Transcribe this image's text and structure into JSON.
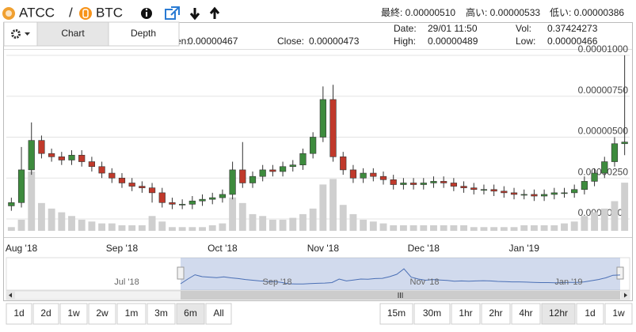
{
  "header": {
    "base": "ATCC",
    "separator": "/",
    "quote": "BTC",
    "stats": [
      "最終: 0.00000510",
      "高い: 0.00000533",
      "低い: 0.00000386"
    ]
  },
  "tabs": [
    "Chart",
    "Depth"
  ],
  "info": {
    "open_label": "Open:",
    "open": "0.00000467",
    "close_label": "Close:",
    "close": "0.00000473",
    "date_label": "Date:",
    "date": "29/01 11:50",
    "vol_label": "Vol:",
    "vol": "0.37424273",
    "high_label": "High:",
    "high": "0.00000489",
    "low_label": "Low:",
    "low": "0.00000466"
  },
  "chart_data": {
    "type": "candlestick",
    "categories": [
      null,
      "Aug '18",
      null,
      null,
      null,
      null,
      null,
      null,
      null,
      null,
      null,
      "Sep '18",
      null,
      null,
      null,
      null,
      null,
      null,
      null,
      null,
      null,
      "Oct '18",
      null,
      null,
      null,
      null,
      null,
      null,
      null,
      null,
      null,
      "Nov '18",
      null,
      null,
      null,
      null,
      null,
      null,
      null,
      null,
      null,
      "Dec '18",
      null,
      null,
      null,
      null,
      null,
      null,
      null,
      null,
      null,
      "Jan '19",
      null,
      null,
      null,
      null,
      null,
      null,
      null,
      null,
      null,
      null
    ],
    "open": [
      8e-07,
      1e-06,
      3e-06,
      4.8e-06,
      4e-06,
      3.8e-06,
      3.6e-06,
      3.9e-06,
      3.5e-06,
      3.2e-06,
      2.8e-06,
      2.5e-06,
      2.2e-06,
      2e-06,
      1.9e-06,
      1.6e-06,
      1e-06,
      9e-07,
      9e-07,
      1.1e-06,
      1.2e-06,
      1.3e-06,
      1.5e-06,
      3e-06,
      2.2e-06,
      2.6e-06,
      3e-06,
      2.9e-06,
      3.2e-06,
      3.3e-06,
      4e-06,
      5e-06,
      7.3e-06,
      3.8e-06,
      3e-06,
      2.5e-06,
      2.8e-06,
      2.6e-06,
      2.4e-06,
      2.1e-06,
      2.2e-06,
      2.1e-06,
      2.2e-06,
      2.3e-06,
      2.2e-06,
      2e-06,
      1.9e-06,
      1.8e-06,
      1.8e-06,
      1.7e-06,
      1.6e-06,
      1.5e-06,
      1.5e-06,
      1.4e-06,
      1.5e-06,
      1.6e-06,
      1.6e-06,
      1.8e-06,
      2.3e-06,
      2.8e-06,
      3.5e-06,
      4.6e-06
    ],
    "high": [
      1.3e-06,
      4.4e-06,
      5.9e-06,
      5.1e-06,
      4.3e-06,
      4.1e-06,
      4.2e-06,
      4.2e-06,
      3.8e-06,
      3.5e-06,
      3.1e-06,
      2.8e-06,
      2.5e-06,
      2.3e-06,
      2.2e-06,
      1.9e-06,
      1.3e-06,
      1.2e-06,
      1.4e-06,
      1.5e-06,
      1.6e-06,
      1.8e-06,
      3.5e-06,
      4.7e-06,
      2.9e-06,
      3.3e-06,
      3.3e-06,
      3.5e-06,
      3.6e-06,
      4.3e-06,
      5.3e-06,
      8.1e-06,
      8.2e-06,
      4.1e-06,
      3.3e-06,
      3.1e-06,
      3.1e-06,
      2.9e-06,
      2.7e-06,
      2.5e-06,
      2.5e-06,
      2.5e-06,
      2.6e-06,
      2.6e-06,
      2.5e-06,
      2.3e-06,
      2.2e-06,
      2.1e-06,
      2.1e-06,
      2e-06,
      1.9e-06,
      1.8e-06,
      1.8e-06,
      1.8e-06,
      1.9e-06,
      1.9e-06,
      2.1e-06,
      2.6e-06,
      3.1e-06,
      3.8e-06,
      5e-06,
      1e-05
    ],
    "low": [
      5e-07,
      7e-07,
      2.7e-06,
      3.7e-06,
      3.5e-06,
      3.3e-06,
      3.3e-06,
      3.2e-06,
      2.9e-06,
      2.5e-06,
      2.2e-06,
      1.9e-06,
      1.7e-06,
      1.6e-06,
      1e-06,
      7e-07,
      6e-07,
      6e-07,
      6e-07,
      8e-07,
      9e-07,
      1e-06,
      1.2e-06,
      1.9e-06,
      1.9e-06,
      2.3e-06,
      2.6e-06,
      2.6e-06,
      2.9e-06,
      3e-06,
      3.7e-06,
      4.7e-06,
      3.5e-06,
      2.7e-06,
      2.2e-06,
      2.2e-06,
      2.3e-06,
      2.1e-06,
      1.8e-06,
      1.8e-06,
      1.8e-06,
      1.8e-06,
      1.9e-06,
      1.9e-06,
      1.7e-06,
      1.6e-06,
      1.5e-06,
      1.5e-06,
      1.4e-06,
      1.3e-06,
      1.2e-06,
      1.2e-06,
      1.1e-06,
      1.1e-06,
      1.2e-06,
      1.3e-06,
      1.3e-06,
      1.5e-06,
      2e-06,
      2.5e-06,
      3.2e-06,
      3.9e-06
    ],
    "close": [
      1e-06,
      3e-06,
      4.8e-06,
      4e-06,
      3.8e-06,
      3.6e-06,
      3.9e-06,
      3.5e-06,
      3.2e-06,
      2.8e-06,
      2.5e-06,
      2.2e-06,
      2e-06,
      1.9e-06,
      1.6e-06,
      1e-06,
      9e-07,
      9e-07,
      1.1e-06,
      1.2e-06,
      1.3e-06,
      1.5e-06,
      3e-06,
      2.2e-06,
      2.6e-06,
      3e-06,
      2.9e-06,
      3.2e-06,
      3.3e-06,
      4e-06,
      5e-06,
      7.3e-06,
      3.8e-06,
      3e-06,
      2.5e-06,
      2.8e-06,
      2.6e-06,
      2.4e-06,
      2.1e-06,
      2.2e-06,
      2.1e-06,
      2.2e-06,
      2.3e-06,
      2.2e-06,
      2e-06,
      1.9e-06,
      1.8e-06,
      1.8e-06,
      1.7e-06,
      1.6e-06,
      1.5e-06,
      1.5e-06,
      1.4e-06,
      1.5e-06,
      1.6e-06,
      1.6e-06,
      1.8e-06,
      2.3e-06,
      2.8e-06,
      3.5e-06,
      4.6e-06,
      4.7e-06
    ],
    "volume": [
      0.2,
      0.6,
      3.2,
      1.5,
      1.2,
      1.0,
      0.8,
      0.6,
      0.5,
      0.4,
      0.4,
      0.3,
      0.3,
      0.3,
      0.8,
      0.5,
      0.2,
      0.2,
      0.2,
      0.2,
      0.3,
      0.4,
      1.8,
      1.5,
      0.9,
      0.8,
      0.6,
      0.6,
      0.7,
      0.9,
      1.2,
      2.5,
      2.8,
      1.4,
      0.9,
      0.6,
      0.5,
      0.4,
      0.3,
      0.3,
      0.3,
      0.3,
      0.3,
      0.3,
      0.3,
      0.3,
      0.2,
      0.2,
      0.2,
      0.2,
      0.2,
      0.3,
      0.3,
      0.3,
      0.3,
      0.4,
      0.5,
      0.8,
      1.0,
      1.2,
      1.6,
      2.6
    ],
    "up_color": "#3d8b3d",
    "down_color": "#c0392b",
    "volume_color": "#cfcfcf",
    "ylim": [
      0,
      1e-05
    ],
    "yticks": [
      {
        "value": 0,
        "label": "0.00000000"
      },
      {
        "value": 2.5e-06,
        "label": "0.00000250"
      },
      {
        "value": 5e-06,
        "label": "0.00000500"
      },
      {
        "value": 7.5e-06,
        "label": "0.00000750"
      },
      {
        "value": 1e-05,
        "label": "0.00001000"
      }
    ],
    "grid": true
  },
  "navigator": {
    "labels": [
      "Jul '18",
      "Sep '18",
      "Nov '18",
      "Jan '19"
    ]
  },
  "ranges": {
    "buttons": [
      "1d",
      "2d",
      "1w",
      "2w",
      "1m",
      "3m",
      "6m",
      "All"
    ],
    "active": "6m"
  },
  "intervals": {
    "buttons": [
      "15m",
      "30m",
      "1hr",
      "2hr",
      "4hr",
      "12hr",
      "1d",
      "1w"
    ],
    "active": "12hr"
  }
}
